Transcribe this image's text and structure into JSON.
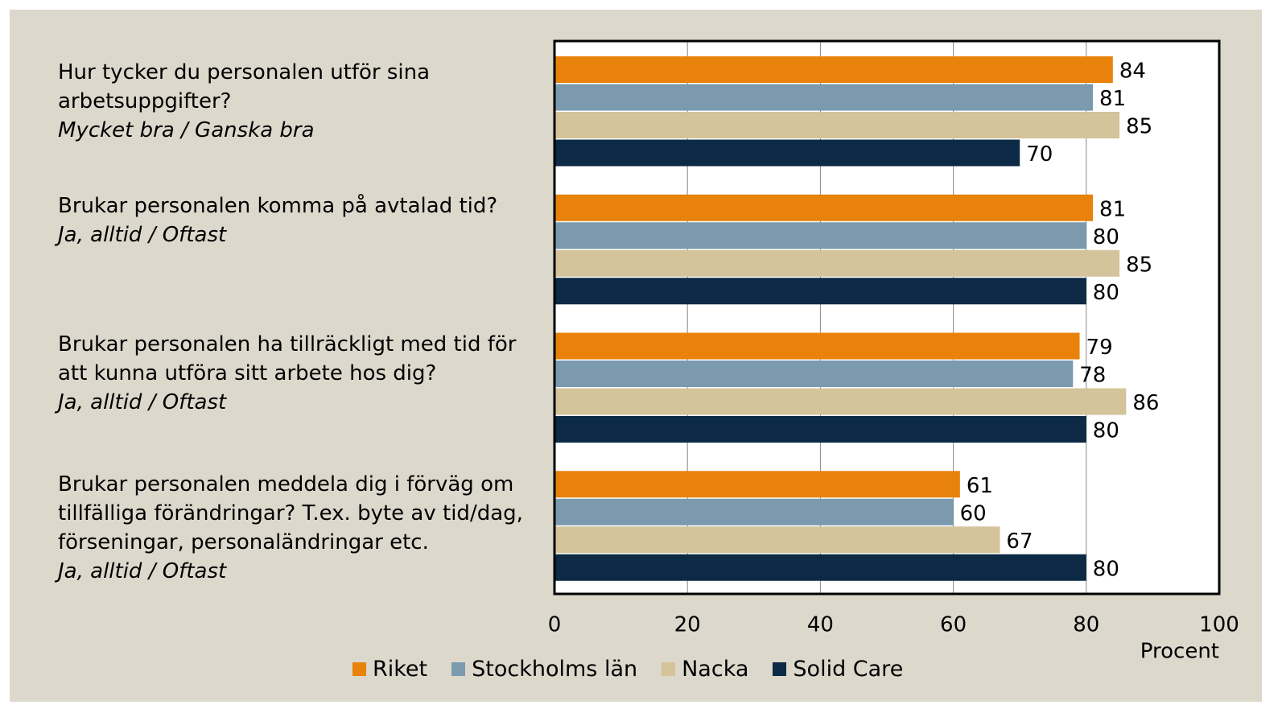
{
  "chart_data": {
    "type": "barh",
    "categories": [
      "Hur tycker du personalen utför sina arbetsuppgifter?",
      "Brukar personalen komma på avtalad tid?",
      "Brukar personalen ha tillräckligt med tid för att kunna utföra sitt arbete hos dig?",
      "Brukar personalen meddela dig i förväg om tillfälliga förändringar? T.ex. byte av tid/dag, förseningar, personaländringar etc."
    ],
    "category_notes": [
      "Mycket bra / Ganska bra",
      "Ja, alltid / Oftast",
      "Ja, alltid / Oftast",
      "Ja, alltid / Oftast"
    ],
    "series": [
      {
        "name": "Riket",
        "color": "#e8820a",
        "values": [
          84,
          81,
          79,
          61
        ]
      },
      {
        "name": "Stockholms län",
        "color": "#7b9aae",
        "values": [
          81,
          80,
          78,
          60
        ]
      },
      {
        "name": "Nacka",
        "color": "#d4c39b",
        "values": [
          85,
          85,
          86,
          67
        ]
      },
      {
        "name": "Solid Care",
        "color": "#0c2a45",
        "values": [
          70,
          80,
          80,
          80
        ]
      }
    ],
    "xlabel": "Procent",
    "xlim": [
      0,
      100
    ],
    "xticks": [
      0,
      20,
      40,
      60,
      80,
      100
    ],
    "grid": true,
    "legend": "bottom"
  }
}
